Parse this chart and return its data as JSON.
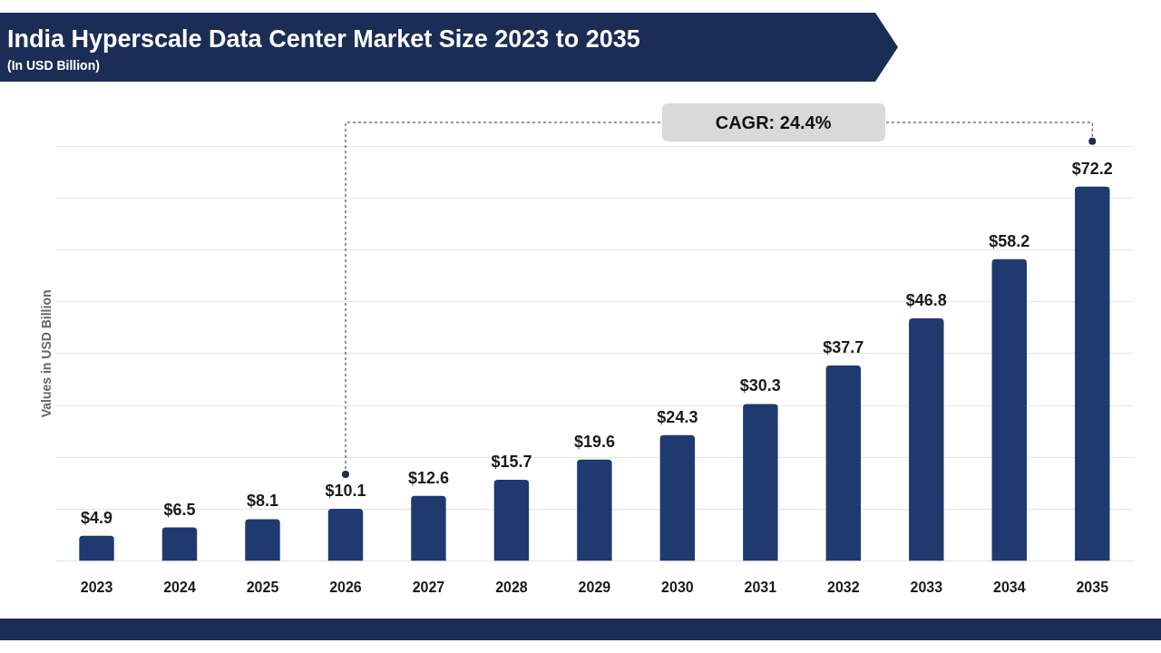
{
  "chart_data": {
    "type": "bar",
    "title": "India Hyperscale Data Center Market Size 2023 to 2035",
    "subtitle": "(In USD Billion)",
    "ylabel": "Values in USD Billion",
    "categories": [
      "2023",
      "2024",
      "2025",
      "2026",
      "2027",
      "2028",
      "2029",
      "2030",
      "2031",
      "2032",
      "2033",
      "2034",
      "2035"
    ],
    "values": [
      4.9,
      6.5,
      8.1,
      10.1,
      12.6,
      15.7,
      19.6,
      24.3,
      30.3,
      37.7,
      46.8,
      58.2,
      72.2
    ],
    "value_labels": [
      "$4.9",
      "$6.5",
      "$8.1",
      "$10.1",
      "$12.6",
      "$15.7",
      "$19.6",
      "$24.3",
      "$30.3",
      "$37.7",
      "$46.8",
      "$58.2",
      "$72.2"
    ],
    "color": "#1f3a6e",
    "ylim": [
      0,
      80
    ],
    "yticks": [
      0,
      10,
      20,
      30,
      40,
      50,
      60,
      70,
      80
    ],
    "grid": "y",
    "tick_labels": "x",
    "legend": false,
    "annotations": [
      "CAGR: 24.4%"
    ]
  }
}
